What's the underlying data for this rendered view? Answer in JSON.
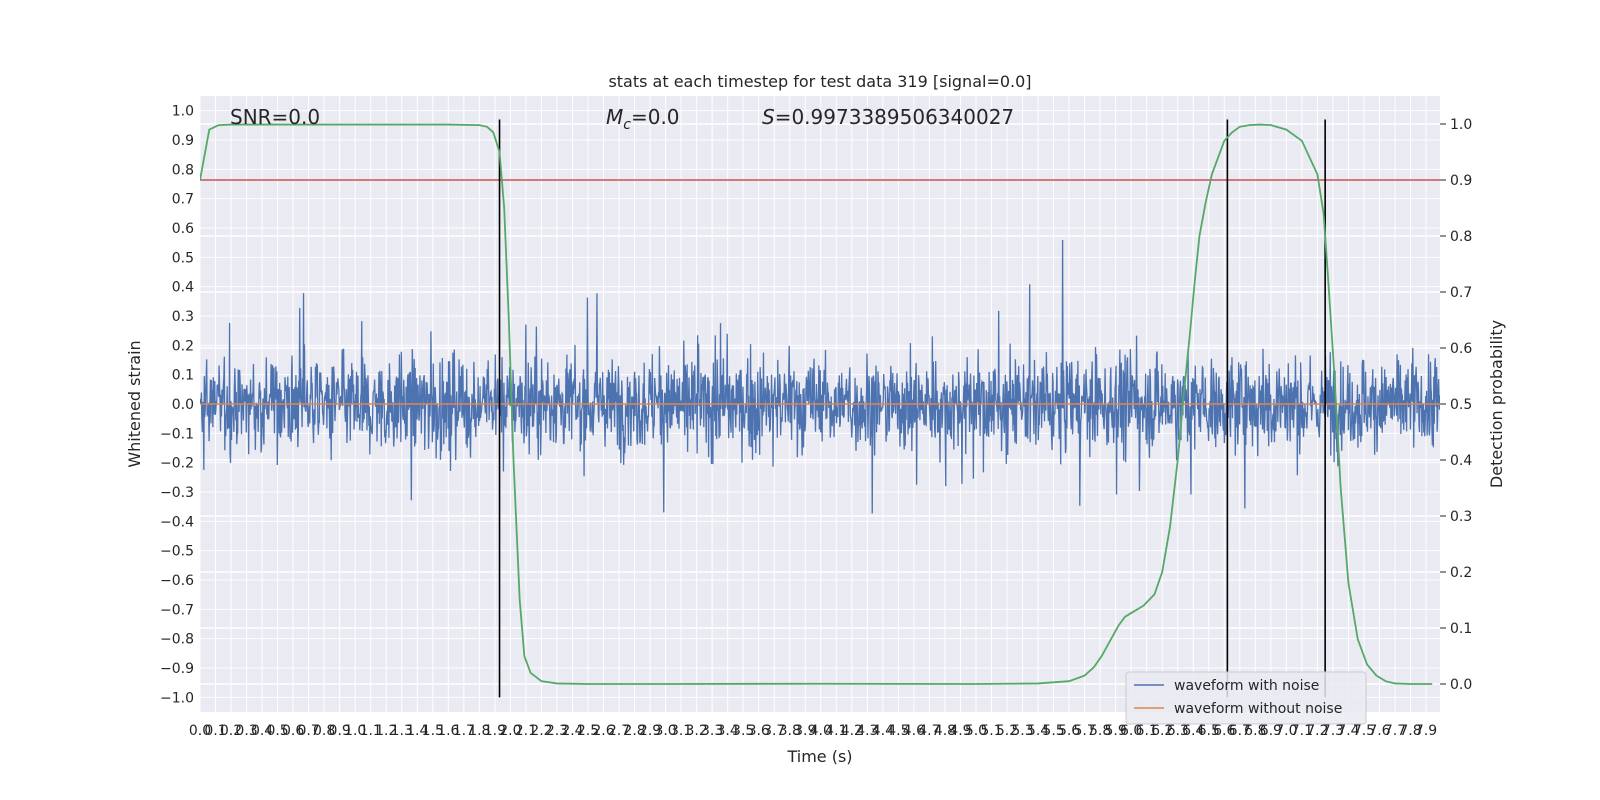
{
  "chart_data": {
    "type": "line",
    "title": "stats at each timestep for test data 319 [signal=0.0]",
    "xlabel": "Time (s)",
    "ylabel_left": "Whitened strain",
    "ylabel_right": "Detection probability",
    "xlim": [
      0.0,
      7.99
    ],
    "ylim_left": [
      -1.05,
      1.05
    ],
    "ylim_right": [
      -0.05,
      1.05
    ],
    "grid": true,
    "legend_position": "lower-right",
    "x_ticks": [
      "0.0",
      "0.1",
      "0.2",
      "0.3",
      "0.4",
      "0.5",
      "0.6",
      "0.7",
      "0.8",
      "0.9",
      "1.0",
      "1.1",
      "1.2",
      "1.3",
      "1.4",
      "1.5",
      "1.6",
      "1.7",
      "1.8",
      "1.9",
      "2.0",
      "2.1",
      "2.2",
      "2.3",
      "2.4",
      "2.5",
      "2.6",
      "2.7",
      "2.8",
      "2.9",
      "3.0",
      "3.1",
      "3.2",
      "3.3",
      "3.4",
      "3.5",
      "3.6",
      "3.7",
      "3.8",
      "3.9",
      "4.0",
      "4.1",
      "4.2",
      "4.3",
      "4.4",
      "4.5",
      "4.6",
      "4.7",
      "4.8",
      "4.9",
      "5.0",
      "5.1",
      "5.2",
      "5.3",
      "5.4",
      "5.5",
      "5.6",
      "5.7",
      "5.8",
      "5.9",
      "6.0",
      "6.1",
      "6.2",
      "6.3",
      "6.4",
      "6.5",
      "6.6",
      "6.7",
      "6.8",
      "6.9",
      "7.0",
      "7.1",
      "7.2",
      "7.3",
      "7.4",
      "7.5",
      "7.6",
      "7.7",
      "7.8",
      "7.9"
    ],
    "y_ticks_left": [
      "1.0",
      "0.9",
      "0.8",
      "0.7",
      "0.6",
      "0.5",
      "0.4",
      "0.3",
      "0.2",
      "0.1",
      "0.0",
      "-0.1",
      "-0.2",
      "-0.3",
      "-0.4",
      "-0.5",
      "-0.6",
      "-0.7",
      "-0.8",
      "-0.9",
      "-1.0"
    ],
    "y_ticks_right": [
      "1.0",
      "0.9",
      "0.8",
      "0.7",
      "0.6",
      "0.5",
      "0.4",
      "0.3",
      "0.2",
      "0.1",
      "0.0"
    ],
    "annotations": {
      "snr": "SNR=0.0",
      "mc_symbol": "M",
      "mc_sub": "c",
      "mc_value": "=0.0",
      "s_symbol": "S",
      "s_value": "=0.9973389506340027"
    },
    "series": [
      {
        "name": "waveform with noise",
        "axis": "left",
        "color": "#4c72b0",
        "note_envelope_typical": [
          -0.38,
          0.38
        ],
        "note_envelope_extreme": [
          -1.0,
          0.97
        ]
      },
      {
        "name": "waveform without noise",
        "axis": "left",
        "color": "#dd8452",
        "constant_value": 0.0
      },
      {
        "name": "detection probability",
        "axis": "right",
        "color": "#55a868",
        "x": [
          0.0,
          0.06,
          0.12,
          0.2,
          0.4,
          0.8,
          1.2,
          1.6,
          1.8,
          1.85,
          1.89,
          1.93,
          1.96,
          1.99,
          2.02,
          2.06,
          2.09,
          2.13,
          2.2,
          2.3,
          2.5,
          3.0,
          4.0,
          5.0,
          5.4,
          5.6,
          5.7,
          5.76,
          5.81,
          5.86,
          5.92,
          5.96,
          6.02,
          6.08,
          6.15,
          6.2,
          6.25,
          6.3,
          6.34,
          6.38,
          6.41,
          6.44,
          6.48,
          6.52,
          6.56,
          6.6,
          6.65,
          6.7,
          6.76,
          6.83,
          6.9,
          7.0,
          7.1,
          7.2,
          7.24,
          7.27,
          7.31,
          7.35,
          7.4,
          7.46,
          7.52,
          7.58,
          7.64,
          7.7,
          7.8,
          7.94
        ],
        "y": [
          0.9,
          0.99,
          0.998,
          0.999,
          0.999,
          0.999,
          0.999,
          0.999,
          0.998,
          0.995,
          0.985,
          0.95,
          0.85,
          0.65,
          0.4,
          0.15,
          0.05,
          0.02,
          0.005,
          0.001,
          0.0,
          0.0,
          0.0005,
          0.0,
          0.001,
          0.005,
          0.015,
          0.03,
          0.05,
          0.075,
          0.105,
          0.12,
          0.13,
          0.14,
          0.16,
          0.2,
          0.28,
          0.4,
          0.52,
          0.63,
          0.72,
          0.8,
          0.86,
          0.91,
          0.94,
          0.97,
          0.985,
          0.995,
          0.998,
          0.999,
          0.998,
          0.99,
          0.97,
          0.91,
          0.84,
          0.72,
          0.55,
          0.35,
          0.18,
          0.08,
          0.035,
          0.015,
          0.005,
          0.001,
          0.0,
          0.0
        ]
      }
    ],
    "threshold_line": {
      "value": 0.9,
      "axis": "right",
      "color": "#c44e52"
    },
    "vertical_lines": {
      "x": [
        1.93,
        6.62,
        7.25
      ],
      "color": "#000000",
      "y_from": -1.0,
      "y_to": 0.97
    }
  }
}
